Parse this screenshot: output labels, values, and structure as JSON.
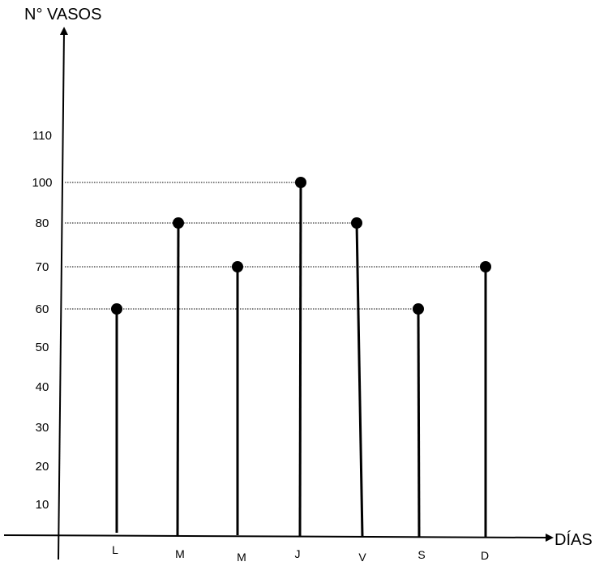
{
  "chart_data": {
    "type": "lollipop",
    "ylabel": "N° VASOS",
    "xlabel": "DÍAS",
    "categories": [
      "L",
      "M",
      "M",
      "J",
      "V",
      "S",
      "D"
    ],
    "values": [
      60,
      80,
      70,
      100,
      80,
      60,
      70
    ],
    "yticks": [
      {
        "label": "10",
        "value": 10
      },
      {
        "label": "20",
        "value": 20
      },
      {
        "label": "30",
        "value": 30
      },
      {
        "label": "40",
        "value": 40
      },
      {
        "label": "50",
        "value": 50
      },
      {
        "label": "60",
        "value": 60
      },
      {
        "label": "70",
        "value": 70
      },
      {
        "label": "80",
        "value": 80
      },
      {
        "label": "100",
        "value": 100
      },
      {
        "label": "110",
        "value": 110
      }
    ],
    "grid": false,
    "guide_lines": "dotted"
  }
}
